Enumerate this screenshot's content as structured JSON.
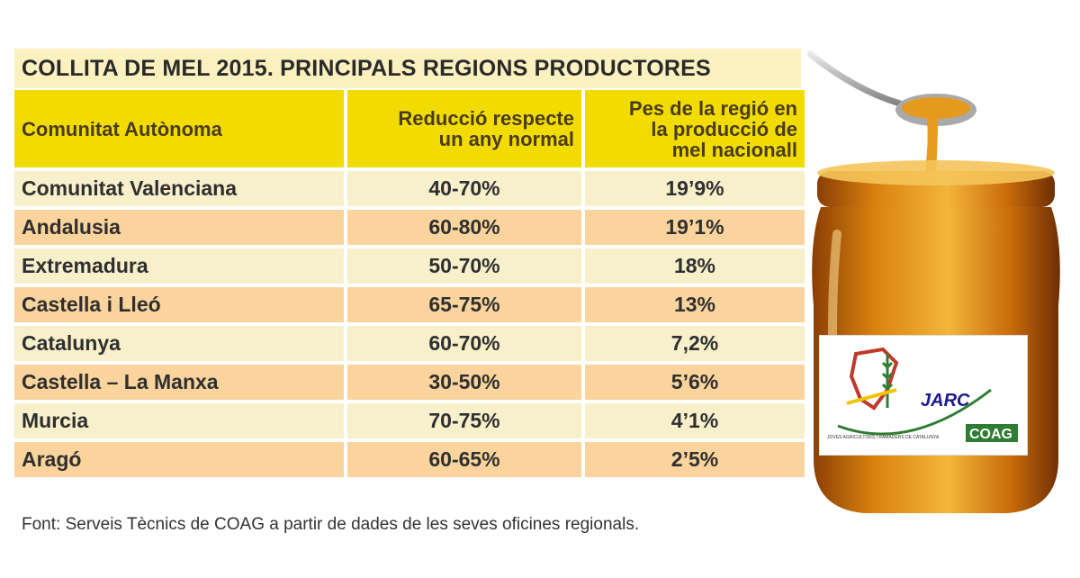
{
  "chart_data": {
    "type": "table",
    "title": "COLLITA DE MEL 2015. PRINCIPALS REGIONS PRODUCTORES",
    "columns": [
      "Comunitat Autònoma",
      "Reducció respecte un any normal",
      "Pes de la regió en la producció de mel nacionall"
    ],
    "header_lines": {
      "region": [
        "Comunitat Autònoma"
      ],
      "reduction": [
        "Reducció respecte",
        "un any normal"
      ],
      "weight": [
        "Pes de la regió en",
        "la producció de",
        "mel nacionall"
      ]
    },
    "rows": [
      {
        "region": "Comunitat Valenciana",
        "reduction": "40-70%",
        "weight": "19’9%"
      },
      {
        "region": "Andalusia",
        "reduction": "60-80%",
        "weight": "19’1%"
      },
      {
        "region": "Extremadura",
        "reduction": "50-70%",
        "weight": "18%"
      },
      {
        "region": "Castella i Lleó",
        "reduction": "65-75%",
        "weight": "13%"
      },
      {
        "region": "Catalunya",
        "reduction": "60-70%",
        "weight": "7,2%"
      },
      {
        "region": "Castella – La Manxa",
        "reduction": "30-50%",
        "weight": "5’6%"
      },
      {
        "region": "Murcia",
        "reduction": "70-75%",
        "weight": "4’1%"
      },
      {
        "region": "Aragó",
        "reduction": "60-65%",
        "weight": "2’5%"
      }
    ],
    "source": "Font: Serveis Tècnics de COAG a partir de dades de les seves oficines regionals."
  },
  "logo": {
    "name": "JARC",
    "org": "COAG",
    "tagline": "JOVES AGRICULTORS I RAMADERS DE CATALUNYA"
  },
  "colors": {
    "title_bg": "#fbf1bf",
    "header_bg": "#f2dc00",
    "row_light": "#f8efcb",
    "row_dark": "#fad49c",
    "honey": "#d9820f"
  },
  "icons": [
    "honey-jar-icon",
    "honey-spoon-icon",
    "wheat-icon"
  ]
}
